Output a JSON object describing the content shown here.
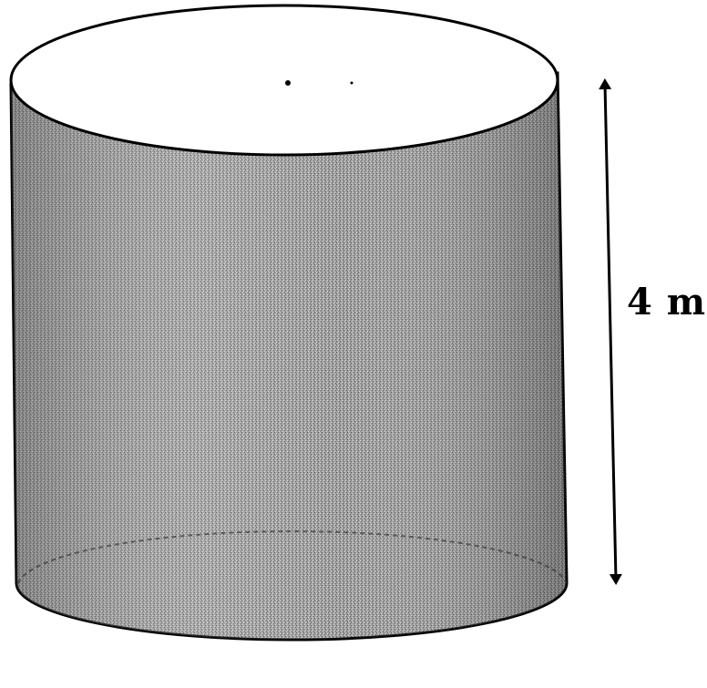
{
  "diagram": {
    "height_label": "4 m"
  },
  "colors": {
    "cylinder_fill": "#8e8e8e",
    "outline": "#000000",
    "top_face": "#ffffff"
  }
}
